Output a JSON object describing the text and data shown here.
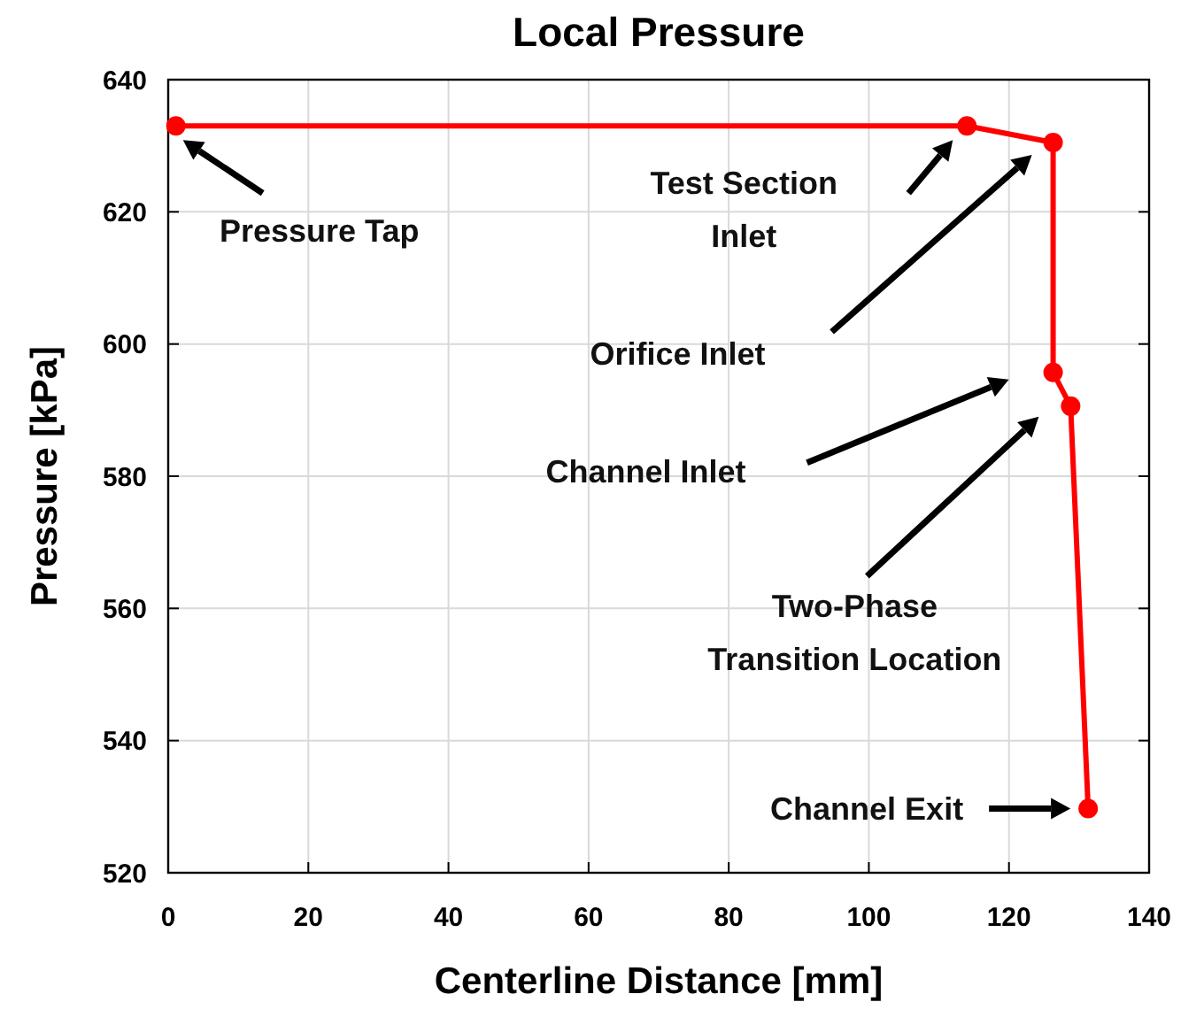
{
  "chart_data": {
    "type": "line",
    "title": "Local Pressure",
    "xlabel": "Centerline Distance [mm]",
    "ylabel": "Pressure [kPa]",
    "x": [
      1.1,
      114,
      126.3,
      126.3,
      128.8,
      131.3
    ],
    "series": [
      {
        "color": "#ff0000",
        "values": [
          633,
          633,
          630.5,
          595.7,
          590.6,
          529.7
        ]
      }
    ],
    "xlim": [
      0,
      140
    ],
    "xticks": [
      0,
      20,
      40,
      60,
      80,
      100,
      120,
      140
    ],
    "ylim": [
      520,
      640
    ],
    "yticks": [
      520,
      540,
      560,
      580,
      600,
      620,
      640
    ],
    "grid": true,
    "marker": "circle",
    "line_style": "solid",
    "annotations": [
      "Pressure Tap",
      "Test Section\nInlet",
      "Orifice Inlet",
      "Channel Inlet",
      "Two-Phase\nTransition Location",
      "Channel Exit"
    ]
  }
}
